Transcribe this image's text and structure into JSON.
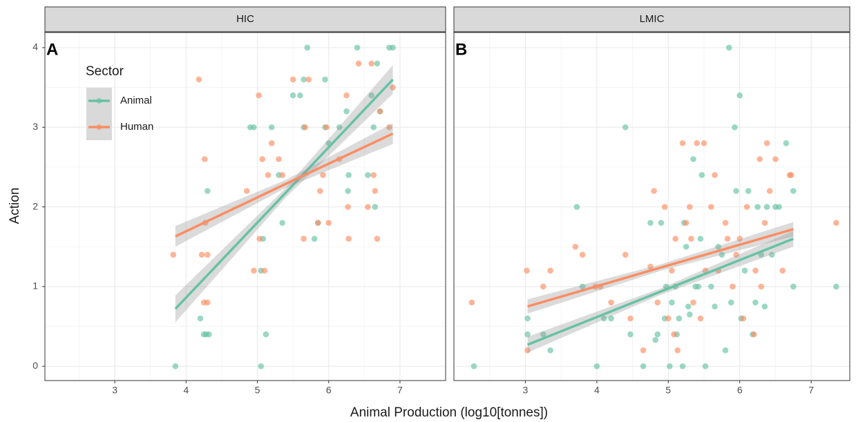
{
  "xlabel": "Animal Production (log10[tonnes])",
  "ylabel": "Action",
  "legend": {
    "title": "Sector"
  },
  "chart_data": [
    {
      "type": "scatter",
      "title": "HIC",
      "label": "A",
      "xlim": [
        2.02,
        7.64
      ],
      "ylim": [
        -0.18,
        4.19
      ],
      "xticks": [
        3,
        4,
        5,
        6,
        7
      ],
      "yticks": [
        0,
        1,
        2,
        3,
        4
      ],
      "grid": true,
      "series": [
        {
          "name": "Animal",
          "color": "#66c2a5",
          "x": [
            3.85,
            4.2,
            4.25,
            4.28,
            4.32,
            4.3,
            4.9,
            4.95,
            5.05,
            5.05,
            5.08,
            5.12,
            5.2,
            5.3,
            5.35,
            5.5,
            5.6,
            5.65,
            5.7,
            5.65,
            5.8,
            5.85,
            5.95,
            5.95,
            6.0,
            6.15,
            6.25,
            6.28,
            6.27,
            6.4,
            6.55,
            6.6,
            6.63,
            6.65,
            6.68,
            6.72,
            6.85,
            6.9
          ],
          "values": [
            0,
            0.6,
            0.4,
            0.4,
            0.4,
            2.2,
            3,
            3,
            0,
            1.2,
            1.6,
            0.4,
            3,
            2.4,
            1.8,
            3.4,
            3.4,
            3.6,
            4,
            3,
            1.6,
            1.8,
            3,
            3.6,
            2.8,
            3,
            3.2,
            2.4,
            2.2,
            4,
            2.4,
            3.4,
            3,
            2,
            3.8,
            3.2,
            4,
            4
          ],
          "fit": {
            "x": [
              3.85,
              5.4,
              6.9
            ],
            "y": [
              0.72,
              2.18,
              3.6
            ],
            "lower": [
              0.55,
              2.12,
              3.42
            ],
            "upper": [
              0.89,
              2.24,
              3.78
            ]
          }
        },
        {
          "name": "Human",
          "color": "#fc8d62",
          "x": [
            3.82,
            4.18,
            4.22,
            4.25,
            4.27,
            4.26,
            4.3,
            4.3,
            4.85,
            4.95,
            5.02,
            5.03,
            5.07,
            5.1,
            5.15,
            5.2,
            5.3,
            5.35,
            5.5,
            5.65,
            5.67,
            5.72,
            5.85,
            5.88,
            5.92,
            5.97,
            6.0,
            6.15,
            6.25,
            6.27,
            6.28,
            6.42,
            6.55,
            6.6,
            6.63,
            6.65,
            6.68,
            6.72,
            6.85,
            6.9
          ],
          "values": [
            1.4,
            3.6,
            1.4,
            0.8,
            1.8,
            2.6,
            0.8,
            1.4,
            2.2,
            1.2,
            3.4,
            1.6,
            2.6,
            1.2,
            2.4,
            2.8,
            2.6,
            2.4,
            3.6,
            1.6,
            3,
            3.6,
            1.8,
            2.2,
            2.4,
            3,
            1.8,
            2.6,
            3.4,
            2,
            1.6,
            3.8,
            2,
            3.8,
            2.4,
            2.2,
            1.6,
            3.2,
            3,
            3.5
          ],
          "fit": {
            "x": [
              3.85,
              5.4,
              6.9
            ],
            "y": [
              1.63,
              2.29,
              2.92
            ],
            "lower": [
              1.5,
              2.24,
              2.79
            ],
            "upper": [
              1.76,
              2.34,
              3.05
            ]
          }
        }
      ]
    },
    {
      "type": "scatter",
      "title": "LMIC",
      "label": "B",
      "xlim": [
        2.0,
        7.54
      ],
      "ylim": [
        -0.18,
        4.19
      ],
      "xticks": [
        3,
        4,
        5,
        6,
        7
      ],
      "yticks": [
        0,
        1,
        2,
        3,
        4
      ],
      "grid": true,
      "series": [
        {
          "name": "Animal",
          "color": "#66c2a5",
          "x": [
            2.28,
            3.03,
            3.03,
            3.25,
            3.35,
            3.72,
            3.8,
            4.0,
            4.1,
            4.2,
            4.4,
            4.47,
            4.65,
            4.75,
            4.82,
            4.85,
            4.9,
            4.95,
            4.97,
            5.02,
            5.05,
            5.1,
            5.12,
            5.15,
            5.2,
            5.22,
            5.25,
            5.28,
            5.3,
            5.35,
            5.38,
            5.42,
            5.45,
            5.47,
            5.52,
            5.6,
            5.65,
            5.7,
            5.75,
            5.8,
            5.85,
            5.88,
            5.93,
            5.95,
            6.0,
            6.02,
            6.07,
            6.12,
            6.18,
            6.22,
            6.25,
            6.3,
            6.35,
            6.38,
            6.45,
            6.5,
            6.55,
            6.65,
            6.75,
            6.75,
            7.35
          ],
          "values": [
            0,
            0.6,
            0.4,
            0.4,
            0.2,
            2,
            1,
            0,
            0.6,
            0.6,
            3,
            0.4,
            0,
            1.8,
            0.33,
            0.4,
            1.8,
            0.6,
            1,
            0,
            0.8,
            1,
            0.4,
            0.6,
            0,
            1.8,
            1.5,
            0.75,
            0.65,
            2.6,
            1,
            1,
            1.6,
            2.4,
            0,
            1,
            0.75,
            1.5,
            1.4,
            0.2,
            4,
            0.8,
            3,
            2.2,
            3.4,
            0.6,
            1.2,
            2.2,
            0.4,
            0.8,
            2,
            1.4,
            0.75,
            2,
            1.4,
            2,
            2,
            2.8,
            2.2,
            1,
            1
          ],
          "fit": {
            "x": [
              3.03,
              4.9,
              6.75
            ],
            "y": [
              0.27,
              0.94,
              1.6
            ],
            "lower": [
              0.17,
              0.9,
              1.5
            ],
            "upper": [
              0.37,
              0.98,
              1.7
            ]
          }
        },
        {
          "name": "Human",
          "color": "#fc8d62",
          "x": [
            2.25,
            3.02,
            3.03,
            3.25,
            3.35,
            3.7,
            3.8,
            3.98,
            4.05,
            4.2,
            4.4,
            4.47,
            4.65,
            4.75,
            4.8,
            4.85,
            4.95,
            5.0,
            5.05,
            5.08,
            5.1,
            5.13,
            5.2,
            5.25,
            5.3,
            5.32,
            5.35,
            5.4,
            5.45,
            5.5,
            5.52,
            5.6,
            5.65,
            5.7,
            5.8,
            5.83,
            5.9,
            5.95,
            6.0,
            6.05,
            6.1,
            6.2,
            6.22,
            6.28,
            6.3,
            6.35,
            6.38,
            6.42,
            6.5,
            6.6,
            6.7,
            6.72,
            7.35
          ],
          "values": [
            0.8,
            1.2,
            0.2,
            1,
            1.2,
            1.5,
            1.4,
            1,
            1,
            0.8,
            1.4,
            0.6,
            0.2,
            1.25,
            2.2,
            0.8,
            2,
            0.6,
            1.2,
            0.4,
            1.6,
            0.2,
            2.8,
            1.8,
            2,
            1.6,
            0.8,
            2.8,
            0.6,
            2.8,
            1.2,
            2,
            2.4,
            1.2,
            1.8,
            1.6,
            1,
            1.4,
            1.6,
            0.6,
            2,
            0.4,
            1.2,
            2.6,
            1,
            1.8,
            2.8,
            2.2,
            2.6,
            1.2,
            2.4,
            2.4,
            1.8
          ],
          "fit": {
            "x": [
              3.03,
              4.9,
              6.75
            ],
            "y": [
              0.75,
              1.24,
              1.72
            ],
            "lower": [
              0.66,
              1.2,
              1.63
            ],
            "upper": [
              0.84,
              1.28,
              1.81
            ]
          }
        }
      ]
    }
  ]
}
